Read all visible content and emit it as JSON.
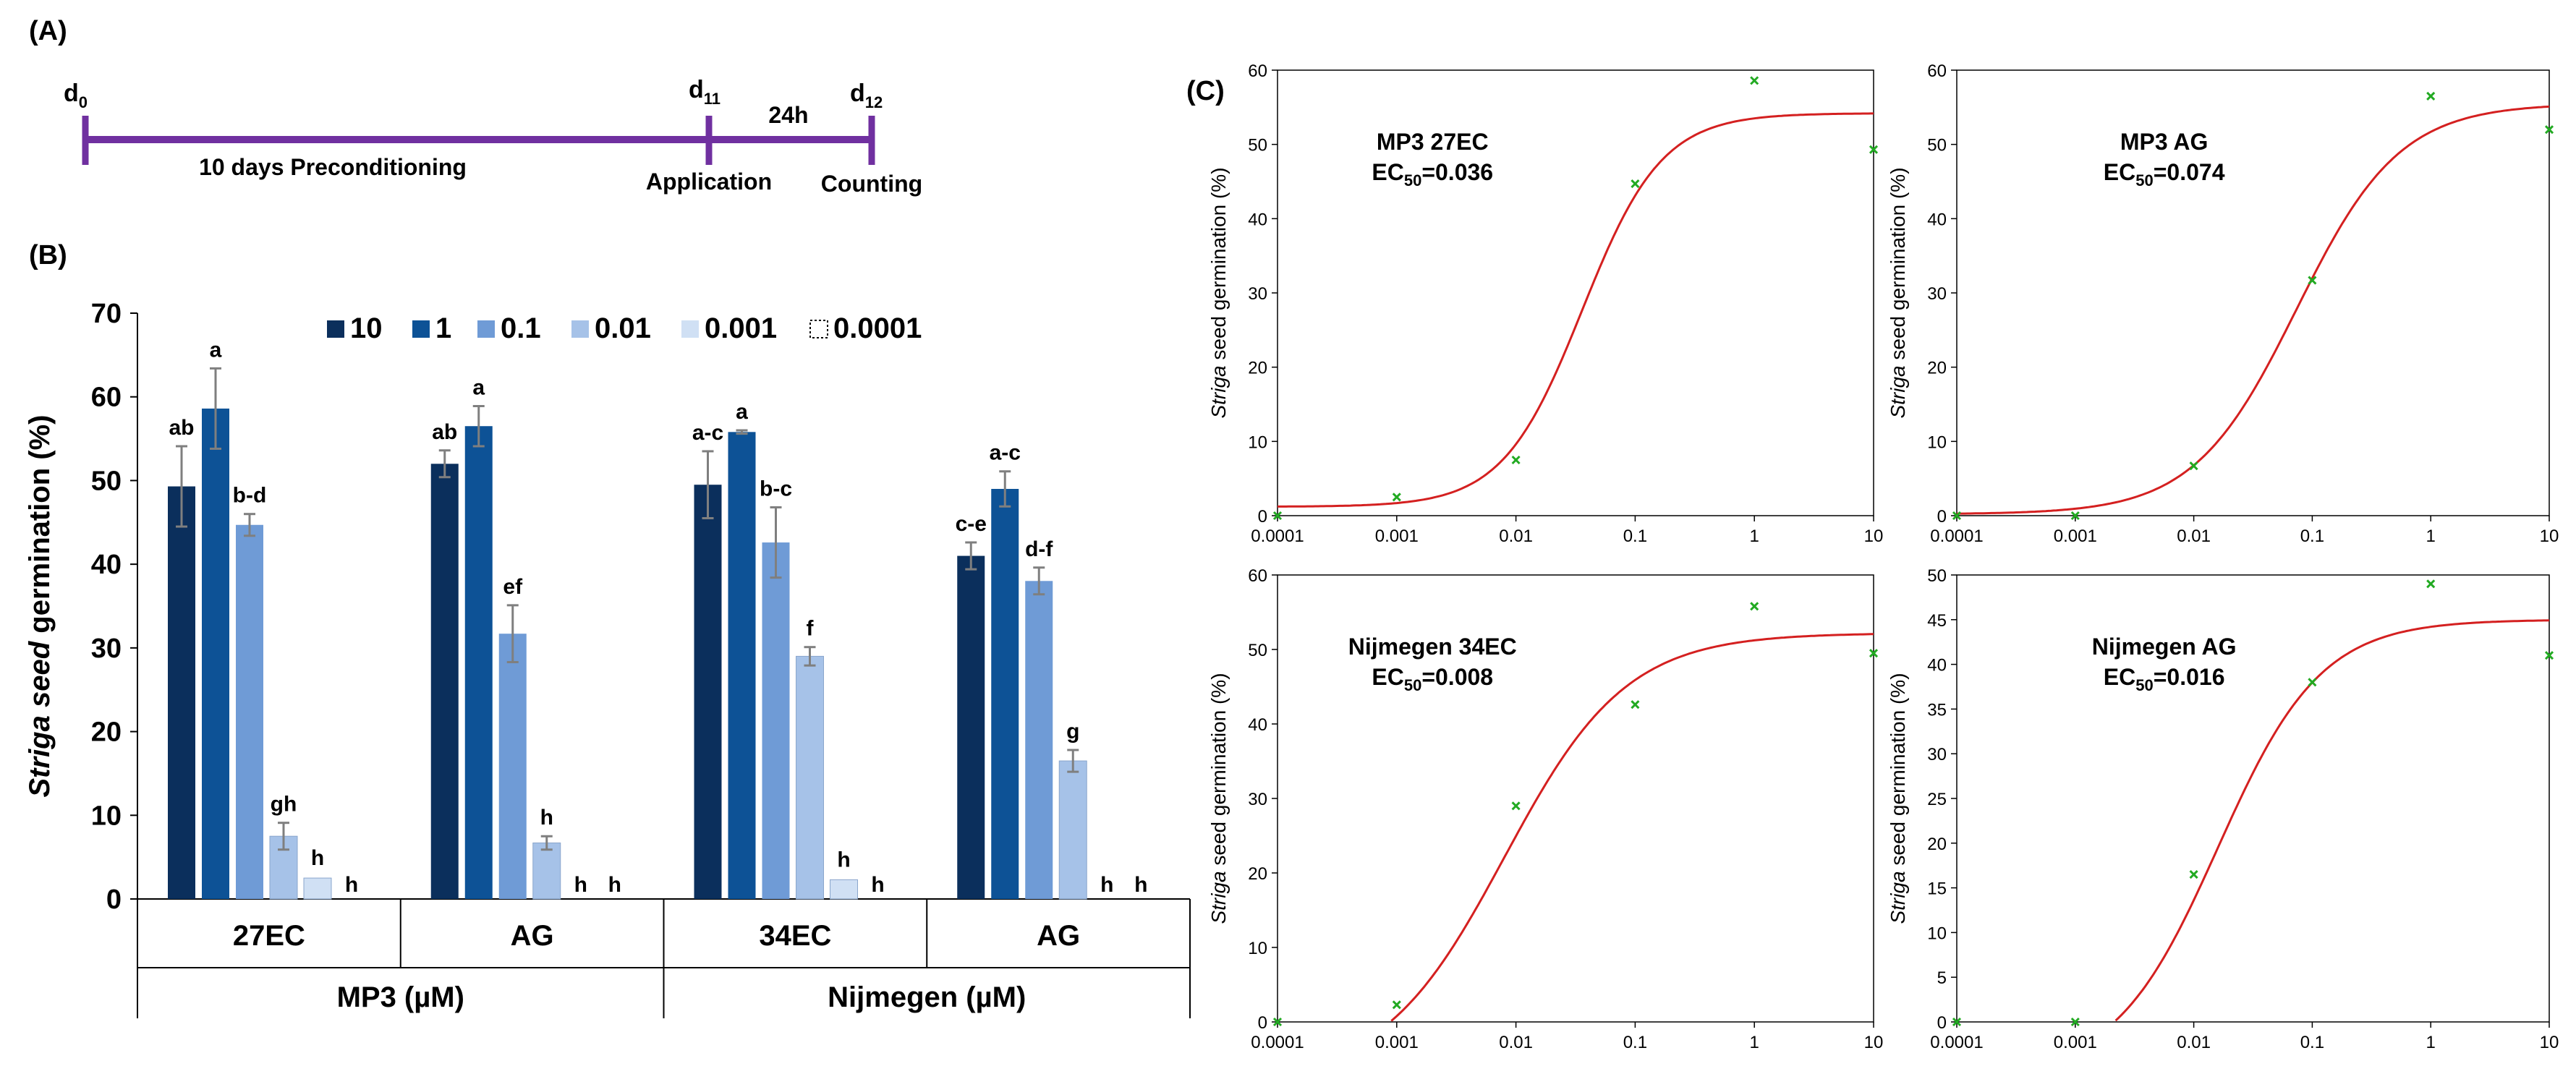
{
  "panel_a": {
    "label": "(A)",
    "d0_base": "d",
    "d0_sub": "0",
    "d11_base": "d",
    "d11_sub": "11",
    "d12_base": "d",
    "d12_sub": "12",
    "interval": "24h",
    "precondition": "10 days Preconditioning",
    "application": "Application",
    "counting": "Counting"
  },
  "panel_b": {
    "label": "(B)"
  },
  "panel_c": {
    "label": "(C)"
  },
  "colors": {
    "bars": [
      "#0b2f5c",
      "#0d5296",
      "#6f9bd6",
      "#a6c2e8",
      "#d0e0f4",
      "#ffffff"
    ],
    "curve": "#d42020",
    "points": "#22aa22",
    "timeline": "#7030a0",
    "error": "#7f7f7f"
  },
  "chart_data": [
    {
      "type": "bar",
      "title": "",
      "ylabel_italic": "Striga seed",
      "ylabel_rest": " germination (%)",
      "ylim": [
        0,
        70
      ],
      "yticks": [
        0,
        10,
        20,
        30,
        40,
        50,
        60,
        70
      ],
      "legend_position": "top",
      "series_names": [
        "10",
        "1",
        "0.1",
        "0.01",
        "0.001",
        "0.0001"
      ],
      "categories": [
        "27EC",
        "AG",
        "34EC",
        "AG"
      ],
      "groups": [
        "MP3 (µM)",
        "Nijmegen (µM)"
      ],
      "values": [
        [
          49.3,
          58.6,
          44.7,
          7.5,
          2.5,
          0
        ],
        [
          52.0,
          56.5,
          31.7,
          6.7,
          0,
          0
        ],
        [
          49.5,
          55.8,
          42.6,
          29.0,
          2.3,
          0
        ],
        [
          41.0,
          49.0,
          38.0,
          16.5,
          0,
          0
        ]
      ],
      "errors": [
        [
          4.8,
          4.8,
          1.3,
          1.6,
          0,
          0
        ],
        [
          1.6,
          2.4,
          3.4,
          0.8,
          0,
          0
        ],
        [
          4.0,
          0.2,
          4.2,
          1.1,
          0,
          0
        ],
        [
          1.6,
          2.1,
          1.6,
          1.3,
          0,
          0
        ]
      ],
      "letters": [
        [
          "ab",
          "a",
          "b-d",
          "gh",
          "h",
          "h"
        ],
        [
          "ab",
          "a",
          "ef",
          "h",
          "h",
          "h"
        ],
        [
          "a-c",
          "a",
          "b-c",
          "f",
          "h",
          "h"
        ],
        [
          "c-e",
          "a-c",
          "d-f",
          "g",
          "h",
          "h"
        ]
      ]
    },
    {
      "type": "scatter",
      "title": "MP3 27EC",
      "ec50_label": "EC",
      "ec50_sub": "50",
      "ec50_value": "=0.036",
      "x_scale": "log",
      "xlim": [
        0.0001,
        10
      ],
      "xticks": [
        "0.0001",
        "0.001",
        "0.01",
        "0.1",
        "1",
        "10"
      ],
      "ylim": [
        0,
        60
      ],
      "yticks": [
        0,
        10,
        20,
        30,
        40,
        50,
        60
      ],
      "ylabel_italic": "Striga",
      "ylabel_rest": " seed germination (%)",
      "x": [
        0.0001,
        0.001,
        0.01,
        0.1,
        1,
        10
      ],
      "y": [
        0,
        2.5,
        7.5,
        44.7,
        58.6,
        49.3
      ],
      "fit": {
        "bottom": 1.2,
        "top": 54.2,
        "ec50": 0.036,
        "hill": 1.3
      }
    },
    {
      "type": "scatter",
      "title": "MP3 AG",
      "ec50_label": "EC",
      "ec50_sub": "50",
      "ec50_value": "=0.074",
      "x_scale": "log",
      "xlim": [
        0.0001,
        10
      ],
      "xticks": [
        "0.0001",
        "0.001",
        "0.01",
        "0.1",
        "1",
        "10"
      ],
      "ylim": [
        0,
        60
      ],
      "yticks": [
        0,
        10,
        20,
        30,
        40,
        50,
        60
      ],
      "ylabel_italic": "Striga",
      "ylabel_rest": " seed germination (%)",
      "x": [
        0.0001,
        0.001,
        0.01,
        0.1,
        1,
        10
      ],
      "y": [
        0,
        0,
        6.7,
        31.7,
        56.5,
        52.0
      ],
      "fit": {
        "bottom": 0.2,
        "top": 55.5,
        "ec50": 0.074,
        "hill": 1.0
      }
    },
    {
      "type": "scatter",
      "title": "Nijmegen 34EC",
      "ec50_label": "EC",
      "ec50_sub": "50",
      "ec50_value": "=0.008",
      "x_scale": "log",
      "xlim": [
        0.0001,
        10
      ],
      "xticks": [
        "0.0001",
        "0.001",
        "0.01",
        "0.1",
        "1",
        "10"
      ],
      "ylim": [
        0,
        60
      ],
      "yticks": [
        0,
        10,
        20,
        30,
        40,
        50,
        60
      ],
      "ylabel_italic": "Striga",
      "ylabel_rest": " seed germination (%)",
      "x": [
        0.0001,
        0.001,
        0.01,
        0.1,
        1,
        10
      ],
      "y": [
        0,
        2.3,
        29.0,
        42.6,
        55.8,
        49.5
      ],
      "fit": {
        "bottom": -8,
        "top": 52.2,
        "ec50": 0.008,
        "hill": 0.85
      }
    },
    {
      "type": "scatter",
      "title": "Nijmegen AG",
      "ec50_label": "EC",
      "ec50_sub": "50",
      "ec50_value": "=0.016",
      "x_scale": "log",
      "xlim": [
        0.0001,
        10
      ],
      "xticks": [
        "0.0001",
        "0.001",
        "0.01",
        "0.1",
        "1",
        "10"
      ],
      "ylim": [
        0,
        50
      ],
      "yticks": [
        0,
        5,
        10,
        15,
        20,
        25,
        30,
        35,
        40,
        45,
        50
      ],
      "ylabel_italic": "Striga",
      "ylabel_rest": " seed germination (%)",
      "x": [
        0.0001,
        0.001,
        0.01,
        0.1,
        1,
        10
      ],
      "y": [
        0,
        0,
        16.5,
        38.0,
        49.0,
        41.0
      ],
      "fit": {
        "bottom": -6,
        "top": 45.0,
        "ec50": 0.016,
        "hill": 1.0
      }
    }
  ]
}
